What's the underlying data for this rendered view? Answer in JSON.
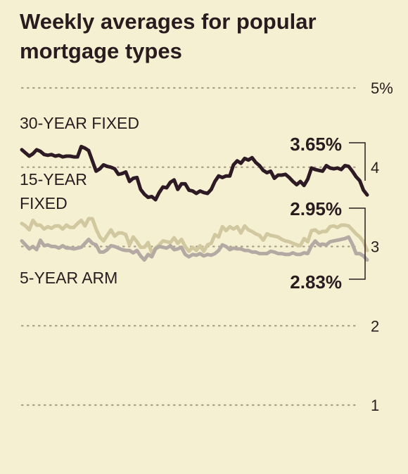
{
  "chart_data": {
    "type": "line",
    "title": "Weekly averages for popular mortgage types",
    "yunit": "%",
    "ylim": [
      0.6,
      5.1
    ],
    "yticks": [
      {
        "value": 5,
        "label": "5%"
      },
      {
        "value": 4,
        "label": "4"
      },
      {
        "value": 3,
        "label": "3"
      },
      {
        "value": 2,
        "label": "2"
      },
      {
        "value": 1,
        "label": "1"
      }
    ],
    "grid": true,
    "series": [
      {
        "name": "30-YEAR FIXED",
        "color": "#2e1a24",
        "end_label": "3.65%",
        "values": [
          4.22,
          4.18,
          4.14,
          4.17,
          4.22,
          4.2,
          4.16,
          4.15,
          4.16,
          4.14,
          4.15,
          4.13,
          4.14,
          4.14,
          4.13,
          4.13,
          4.26,
          4.24,
          4.21,
          4.08,
          3.95,
          3.98,
          4.03,
          4.01,
          4.0,
          3.98,
          3.91,
          3.92,
          3.94,
          3.82,
          3.86,
          3.87,
          3.72,
          3.66,
          3.62,
          3.63,
          3.59,
          3.68,
          3.75,
          3.74,
          3.81,
          3.84,
          3.72,
          3.79,
          3.79,
          3.71,
          3.7,
          3.67,
          3.7,
          3.68,
          3.67,
          3.72,
          3.82,
          3.89,
          3.87,
          3.89,
          3.89,
          4.03,
          4.08,
          4.05,
          4.11,
          4.09,
          4.12,
          4.06,
          4.02,
          3.96,
          3.93,
          3.95,
          3.86,
          3.9,
          3.9,
          3.91,
          3.87,
          3.82,
          3.78,
          3.82,
          3.77,
          3.85,
          3.99,
          3.97,
          3.96,
          3.95,
          4.02,
          3.99,
          3.98,
          3.99,
          3.97,
          4.02,
          4.01,
          3.95,
          3.88,
          3.83,
          3.71,
          3.65
        ]
      },
      {
        "name": "15-YEAR FIXED",
        "color": "#d1c8a0",
        "end_label": "2.95%",
        "values": [
          3.29,
          3.26,
          3.21,
          3.33,
          3.27,
          3.27,
          3.22,
          3.25,
          3.23,
          3.26,
          3.26,
          3.22,
          3.27,
          3.24,
          3.24,
          3.29,
          3.33,
          3.26,
          3.35,
          3.35,
          3.22,
          3.12,
          3.07,
          3.14,
          3.21,
          3.13,
          3.17,
          3.17,
          3.15,
          3.02,
          3.12,
          3.06,
          2.99,
          2.99,
          3.05,
          2.92,
          2.98,
          3.02,
          3.07,
          3.06,
          3.05,
          3.11,
          3.04,
          3.09,
          3.0,
          2.94,
          2.99,
          2.95,
          3.01,
          2.94,
          3.02,
          3.04,
          3.15,
          3.12,
          3.25,
          3.2,
          3.25,
          3.22,
          3.25,
          3.17,
          3.26,
          3.21,
          3.19,
          3.16,
          3.14,
          3.08,
          3.16,
          3.14,
          3.13,
          3.12,
          3.09,
          3.07,
          3.06,
          3.04,
          3.02,
          3.01,
          3.1,
          3.06,
          3.2,
          3.21,
          3.17,
          3.19,
          3.19,
          3.25,
          3.26,
          3.24,
          3.27,
          3.27,
          3.26,
          3.21,
          3.16,
          3.12,
          3.06,
          2.95
        ]
      },
      {
        "name": "5-YEAR ARM",
        "color": "#b5a9a4",
        "end_label": "2.83%",
        "values": [
          3.07,
          3.02,
          2.97,
          3.0,
          2.96,
          3.08,
          3.01,
          3.02,
          3.0,
          3.0,
          2.98,
          3.01,
          2.98,
          2.98,
          2.97,
          2.98,
          2.99,
          3.04,
          3.09,
          3.04,
          3.02,
          2.93,
          2.93,
          2.96,
          3.01,
          3.0,
          2.98,
          2.96,
          2.95,
          2.95,
          2.92,
          2.95,
          2.88,
          2.83,
          2.9,
          2.87,
          2.97,
          3.0,
          2.99,
          2.98,
          3.01,
          2.96,
          2.97,
          2.99,
          2.9,
          2.87,
          2.9,
          2.89,
          2.91,
          2.88,
          2.9,
          2.89,
          2.91,
          2.95,
          3.02,
          3.0,
          2.96,
          2.98,
          2.97,
          2.97,
          2.95,
          2.95,
          2.93,
          2.93,
          2.91,
          2.91,
          2.91,
          2.94,
          2.93,
          2.91,
          2.91,
          2.9,
          2.9,
          2.92,
          2.9,
          2.9,
          2.92,
          2.91,
          3.01,
          3.07,
          3.02,
          3.03,
          3.02,
          3.06,
          3.07,
          3.08,
          3.09,
          3.1,
          3.12,
          3.03,
          2.91,
          2.91,
          2.88,
          2.83
        ]
      }
    ]
  }
}
